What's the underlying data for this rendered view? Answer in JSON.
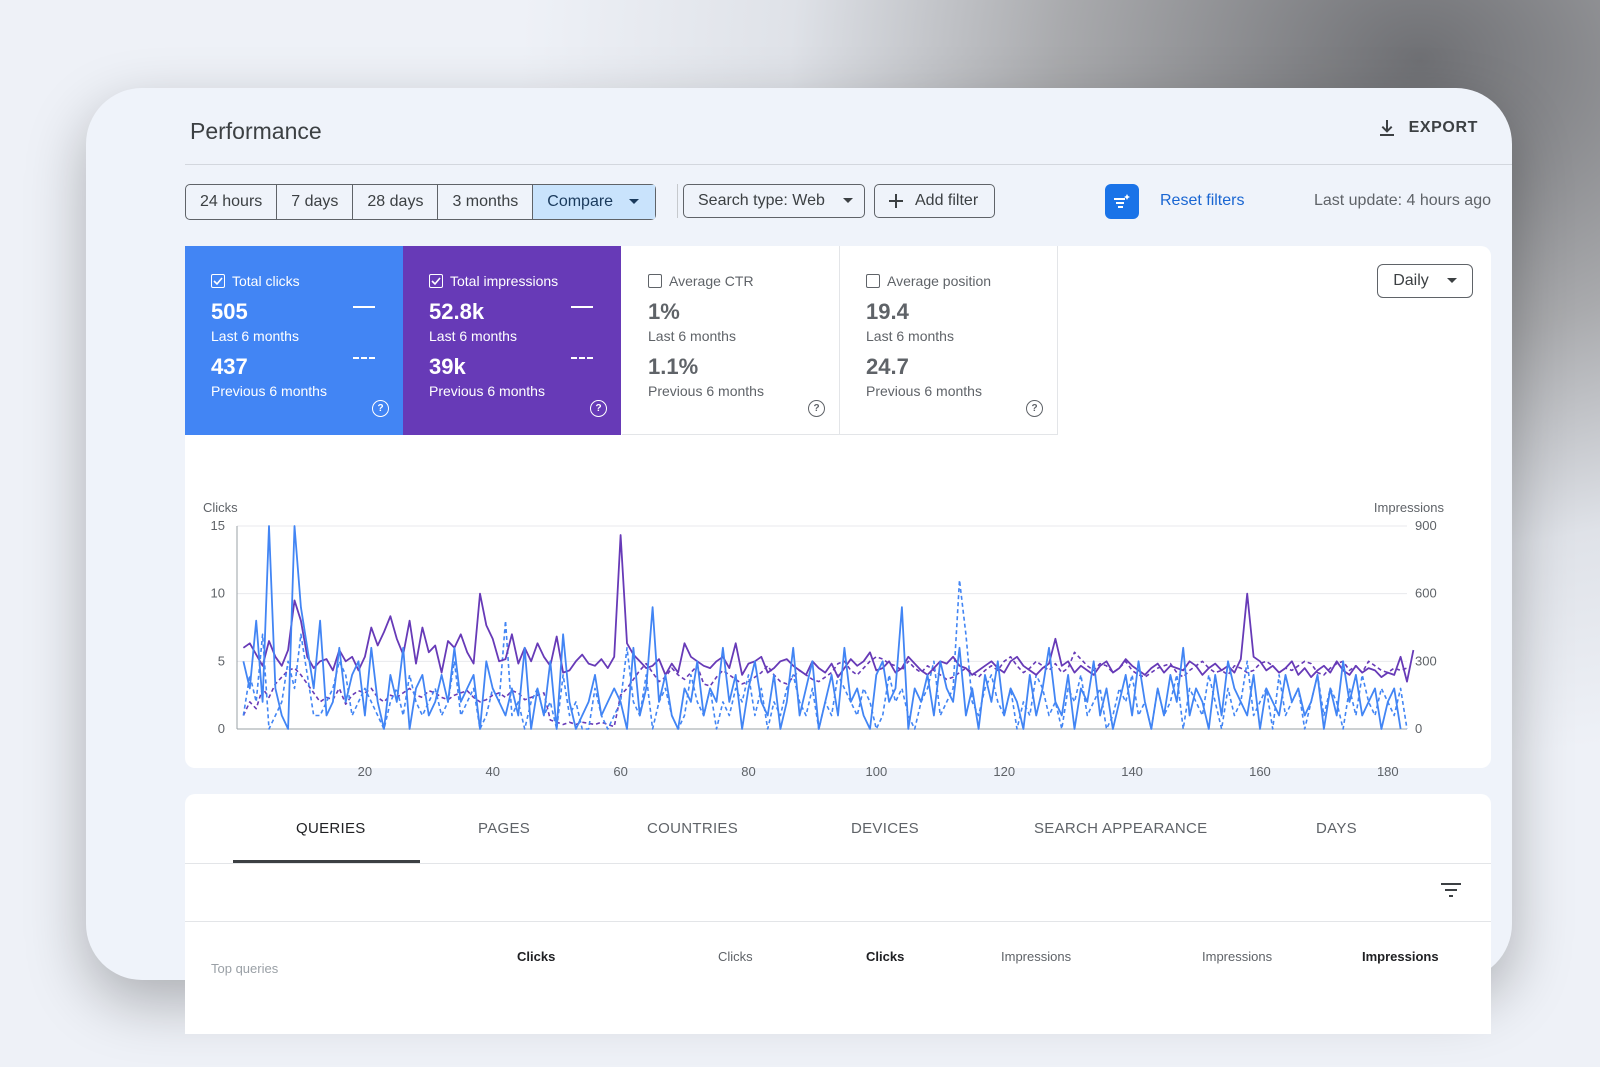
{
  "header": {
    "title": "Performance",
    "export_label": "EXPORT"
  },
  "toolbar": {
    "ranges": [
      "24 hours",
      "7 days",
      "28 days",
      "3 months"
    ],
    "compare_label": "Compare",
    "search_type_label": "Search type: Web",
    "add_filter_label": "Add filter",
    "reset_filters_label": "Reset filters",
    "last_update": "Last update: 4 hours ago"
  },
  "metrics": {
    "clicks": {
      "label": "Total clicks",
      "value": "505",
      "period": "Last 6 months",
      "prev_value": "437",
      "prev_period": "Previous 6 months"
    },
    "impressions": {
      "label": "Total impressions",
      "value": "52.8k",
      "period": "Last 6 months",
      "prev_value": "39k",
      "prev_period": "Previous 6 months"
    },
    "ctr": {
      "label": "Average CTR",
      "value": "1%",
      "period": "Last 6 months",
      "prev_value": "1.1%",
      "prev_period": "Previous 6 months"
    },
    "position": {
      "label": "Average position",
      "value": "19.4",
      "period": "Last 6 months",
      "prev_value": "24.7",
      "prev_period": "Previous 6 months"
    }
  },
  "granularity": "Daily",
  "chart_data": {
    "type": "line",
    "y_left_label": "Clicks",
    "y_right_label": "Impressions",
    "y_left_ticks": [
      0,
      5,
      10,
      15
    ],
    "y_right_ticks": [
      0,
      300,
      600,
      900
    ],
    "x_ticks": [
      20,
      40,
      60,
      80,
      100,
      120,
      140,
      160,
      180
    ],
    "xlim": [
      0,
      183
    ],
    "ylim_left": [
      0,
      15
    ],
    "ylim_right": [
      0,
      900
    ],
    "colors": {
      "clicks": "#4285f4",
      "impressions": "#673ab7"
    },
    "series": [
      {
        "key": "clicks_last",
        "axis": "left",
        "dashed": false,
        "values": [
          5,
          3,
          8,
          2,
          15,
          3,
          1,
          0,
          15,
          9,
          6,
          3,
          8,
          1,
          2,
          6,
          2,
          4,
          5,
          1,
          6,
          2,
          0,
          4,
          2,
          6,
          0,
          3,
          4,
          1,
          2,
          4,
          2,
          6,
          2,
          3,
          4,
          0,
          5,
          3,
          2,
          1,
          3,
          1,
          6,
          0,
          3,
          1,
          5,
          0,
          7,
          2,
          0,
          1,
          2,
          4,
          1,
          2,
          3,
          2,
          0,
          6,
          1,
          3,
          9,
          2,
          4,
          1,
          0,
          3,
          2,
          5,
          1,
          3,
          2,
          6,
          2,
          4,
          0,
          3,
          5,
          2,
          1,
          4,
          0,
          2,
          6,
          1,
          3,
          5,
          0,
          2,
          4,
          1,
          6,
          2,
          3,
          1,
          0,
          4,
          5,
          2,
          3,
          9,
          0,
          3,
          2,
          4,
          1,
          5,
          3,
          2,
          6,
          1,
          3,
          0,
          4,
          2,
          5,
          1,
          3,
          2,
          0,
          4,
          1,
          3,
          6,
          2,
          1,
          4,
          0,
          3,
          2,
          5,
          1,
          3,
          0,
          2,
          4,
          1,
          5,
          2,
          0,
          3,
          1,
          4,
          2,
          6,
          1,
          3,
          2,
          0,
          4,
          1,
          5,
          3,
          2,
          1,
          4,
          0,
          3,
          2,
          1,
          4,
          2,
          3,
          1,
          2,
          4,
          0,
          3,
          1,
          5,
          2,
          4,
          1,
          2,
          3,
          0,
          2,
          3,
          0
        ]
      },
      {
        "key": "impressions_last",
        "axis": "right",
        "dashed": false,
        "values": [
          360,
          380,
          330,
          280,
          390,
          320,
          280,
          350,
          570,
          480,
          320,
          270,
          300,
          310,
          260,
          350,
          300,
          320,
          260,
          320,
          450,
          370,
          430,
          500,
          400,
          330,
          480,
          290,
          450,
          340,
          370,
          250,
          390,
          360,
          420,
          340,
          290,
          600,
          460,
          400,
          300,
          310,
          420,
          290,
          360,
          300,
          380,
          320,
          280,
          410,
          250,
          260,
          300,
          330,
          290,
          280,
          310,
          270,
          320,
          860,
          380,
          330,
          300,
          270,
          280,
          310,
          240,
          290,
          250,
          380,
          320,
          300,
          280,
          270,
          300,
          320,
          270,
          380,
          240,
          290,
          300,
          320,
          250,
          270,
          300,
          310,
          280,
          260,
          240,
          300,
          270,
          250,
          290,
          230,
          270,
          310,
          280,
          300,
          340,
          260,
          270,
          300,
          250,
          270,
          320,
          290,
          260,
          240,
          270,
          300,
          290,
          320,
          280,
          270,
          240,
          260,
          280,
          300,
          270,
          250,
          300,
          320,
          280,
          260,
          240,
          270,
          290,
          400,
          280,
          300,
          250,
          280,
          260,
          240,
          280,
          300,
          250,
          270,
          310,
          280,
          260,
          240,
          270,
          290,
          250,
          280,
          270,
          260,
          300,
          280,
          240,
          270,
          290,
          260,
          280,
          250,
          310,
          600,
          320,
          300,
          260,
          280,
          250,
          270,
          300,
          240,
          270,
          230,
          260,
          280,
          250,
          300,
          260,
          240,
          280,
          250,
          270,
          260,
          230,
          250,
          240,
          320,
          210,
          350
        ]
      },
      {
        "key": "clicks_prev",
        "axis": "left",
        "dashed": true,
        "values": [
          1,
          4,
          2,
          7,
          0,
          1,
          2,
          5,
          3,
          7,
          4,
          1,
          1,
          2,
          3,
          5,
          4,
          1,
          2,
          3,
          2,
          1,
          0,
          2,
          3,
          1,
          4,
          2,
          1,
          2,
          3,
          1,
          2,
          5,
          1,
          2,
          3,
          0,
          1,
          3,
          2,
          8,
          1,
          2,
          0,
          2,
          3,
          1,
          2,
          0,
          4,
          1,
          2,
          0,
          0,
          3,
          1,
          0,
          1,
          2,
          6,
          2,
          1,
          4,
          0,
          2,
          3,
          1,
          0,
          1,
          4,
          2,
          1,
          3,
          0,
          2,
          1,
          3,
          2,
          4,
          1,
          3,
          0,
          2,
          1,
          3,
          4,
          2,
          1,
          3,
          0,
          2,
          1,
          4,
          3,
          2,
          1,
          3,
          2,
          0,
          1,
          4,
          2,
          3,
          1,
          0,
          2,
          3,
          5,
          1,
          2,
          3,
          11,
          7,
          2,
          1,
          3,
          4,
          2,
          1,
          3,
          0,
          2,
          1,
          4,
          3,
          1,
          2,
          0,
          3,
          2,
          4,
          1,
          2,
          3,
          0,
          1,
          3,
          2,
          4,
          1,
          2,
          0,
          3,
          1,
          2,
          4,
          0,
          3,
          2,
          1,
          4,
          2,
          0,
          3,
          1,
          2,
          5,
          1,
          2,
          3,
          0,
          4,
          1,
          2,
          3,
          0,
          2,
          4,
          1,
          3,
          2,
          0,
          3,
          1,
          4,
          2,
          1,
          3,
          2,
          1,
          3,
          0
        ]
      },
      {
        "key": "impressions_prev",
        "axis": "right",
        "dashed": true,
        "values": [
          60,
          120,
          90,
          180,
          140,
          200,
          230,
          260,
          270,
          240,
          200,
          160,
          120,
          140,
          130,
          180,
          110,
          150,
          170,
          160,
          180,
          140,
          120,
          150,
          140,
          160,
          180,
          150,
          140,
          170,
          160,
          140,
          130,
          150,
          160,
          170,
          140,
          120,
          130,
          150,
          160,
          140,
          170,
          160,
          130,
          140,
          150,
          160,
          40,
          30,
          20,
          30,
          20,
          30,
          25,
          20,
          30,
          20,
          10,
          150,
          180,
          220,
          260,
          290,
          250,
          210,
          230,
          270,
          240,
          220,
          250,
          280,
          200,
          190,
          230,
          260,
          240,
          220,
          200,
          210,
          230,
          250,
          280,
          240,
          210,
          200,
          230,
          260,
          240,
          220,
          210,
          230,
          250,
          290,
          300,
          260,
          240,
          270,
          300,
          320,
          310,
          290,
          280,
          260,
          300,
          270,
          250,
          280,
          260,
          240,
          220,
          230,
          250,
          270,
          250,
          230,
          260,
          280,
          260,
          300,
          320,
          280,
          250,
          270,
          300,
          280,
          260,
          290,
          250,
          270,
          340,
          310,
          280,
          260,
          290,
          280,
          250,
          270,
          300,
          260,
          240,
          230,
          250,
          270,
          280,
          290,
          250,
          230,
          260,
          280,
          300,
          270,
          250,
          260,
          240,
          280,
          270,
          250,
          260,
          290,
          300,
          280,
          250,
          270,
          260,
          280,
          300,
          290,
          250,
          240,
          270,
          290,
          300,
          260,
          280,
          250,
          300,
          280,
          260,
          250,
          270,
          260,
          270
        ]
      }
    ]
  },
  "tabs": [
    "QUERIES",
    "PAGES",
    "COUNTRIES",
    "DEVICES",
    "SEARCH APPEARANCE",
    "DAYS"
  ],
  "table": {
    "first_col": "Top queries",
    "headers": [
      "Clicks",
      "Clicks",
      "Clicks",
      "Impressions",
      "Impressions",
      "Impressions"
    ]
  }
}
